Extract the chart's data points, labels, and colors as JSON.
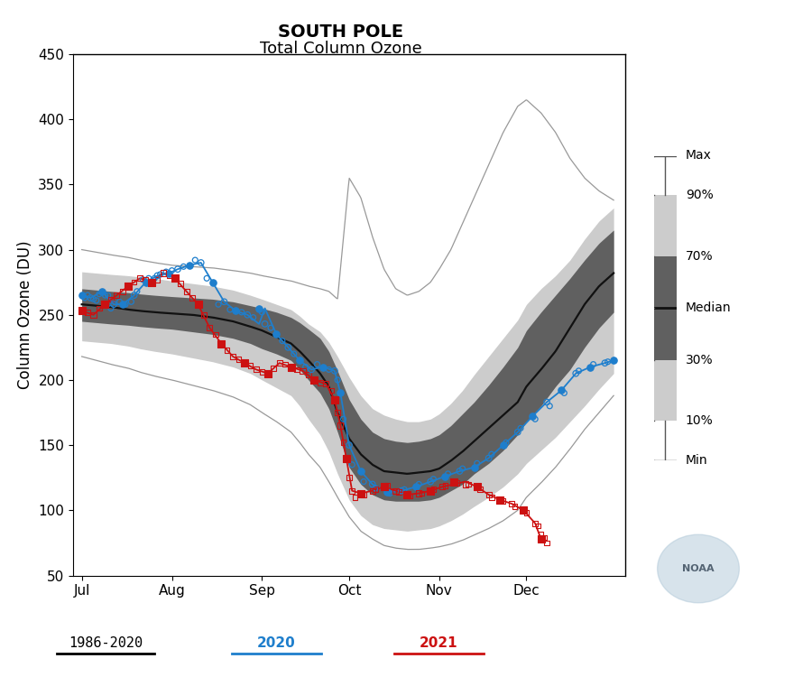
{
  "title_line1": "SOUTH POLE",
  "title_line2": "Total Column Ozone",
  "ylabel": "Column Ozone (DU)",
  "ylim": [
    50,
    450
  ],
  "yticks": [
    50,
    100,
    150,
    200,
    250,
    300,
    350,
    400,
    450
  ],
  "bg_color": "#ffffff",
  "color_light_gray": "#cccccc",
  "color_dark_gray": "#606060",
  "color_median": "#111111",
  "color_maxmin": "#999999",
  "color_2020": "#1e7ecc",
  "color_2021": "#cc1111",
  "color_legend_line": "#000000",
  "month_starts_from_jul1": [
    0,
    31,
    62,
    92,
    123,
    153
  ],
  "month_labels": [
    "Jul",
    "Aug",
    "Sep",
    "Oct",
    "Nov",
    "Dec"
  ],
  "xlim": [
    -3,
    187
  ],
  "xp": [
    0,
    5,
    10,
    16,
    20,
    25,
    31,
    38,
    45,
    52,
    58,
    62,
    67,
    72,
    75,
    78,
    82,
    85,
    88,
    92,
    96,
    100,
    104,
    108,
    112,
    116,
    120,
    123,
    127,
    131,
    135,
    140,
    145,
    150,
    153,
    158,
    163,
    168,
    173,
    178,
    183
  ],
  "med_y": [
    258,
    257,
    256,
    254,
    253,
    252,
    251,
    250,
    248,
    245,
    241,
    238,
    233,
    228,
    222,
    215,
    205,
    195,
    175,
    155,
    143,
    135,
    130,
    129,
    128,
    129,
    130,
    132,
    138,
    145,
    153,
    163,
    173,
    183,
    195,
    208,
    222,
    240,
    258,
    272,
    282
  ],
  "p70_y": [
    270,
    269,
    268,
    267,
    266,
    265,
    264,
    263,
    262,
    260,
    257,
    255,
    252,
    248,
    244,
    239,
    232,
    222,
    207,
    185,
    170,
    160,
    155,
    153,
    152,
    153,
    155,
    158,
    165,
    174,
    183,
    196,
    210,
    225,
    238,
    252,
    265,
    278,
    292,
    305,
    315
  ],
  "p30_y": [
    245,
    244,
    243,
    242,
    241,
    240,
    239,
    237,
    235,
    232,
    228,
    224,
    220,
    215,
    208,
    200,
    190,
    178,
    160,
    133,
    120,
    112,
    108,
    107,
    107,
    107,
    108,
    110,
    115,
    120,
    128,
    136,
    146,
    158,
    168,
    180,
    195,
    208,
    225,
    240,
    252
  ],
  "p90_y": [
    283,
    282,
    281,
    280,
    279,
    278,
    276,
    274,
    272,
    269,
    265,
    262,
    258,
    254,
    249,
    243,
    237,
    229,
    218,
    202,
    188,
    178,
    173,
    170,
    168,
    168,
    170,
    174,
    182,
    192,
    204,
    218,
    232,
    246,
    258,
    270,
    280,
    292,
    308,
    322,
    332
  ],
  "p10_y": [
    230,
    229,
    228,
    226,
    224,
    222,
    220,
    217,
    214,
    210,
    205,
    200,
    194,
    188,
    180,
    170,
    158,
    145,
    128,
    108,
    96,
    89,
    86,
    85,
    84,
    85,
    86,
    88,
    92,
    97,
    103,
    110,
    118,
    128,
    136,
    146,
    156,
    168,
    180,
    193,
    205
  ],
  "max_y": [
    300,
    298,
    296,
    294,
    292,
    290,
    288,
    287,
    286,
    284,
    282,
    280,
    278,
    276,
    274,
    272,
    270,
    268,
    262,
    355,
    340,
    310,
    285,
    270,
    265,
    268,
    275,
    285,
    300,
    320,
    340,
    365,
    390,
    410,
    415,
    405,
    390,
    370,
    355,
    345,
    338
  ],
  "min_y": [
    218,
    215,
    212,
    209,
    206,
    203,
    200,
    196,
    192,
    187,
    181,
    175,
    168,
    160,
    152,
    143,
    133,
    122,
    110,
    95,
    84,
    78,
    73,
    71,
    70,
    70,
    71,
    72,
    74,
    77,
    81,
    86,
    92,
    100,
    110,
    121,
    133,
    147,
    162,
    175,
    188
  ],
  "x2020_line": [
    0,
    3,
    7,
    11,
    14,
    18,
    22,
    26,
    30,
    33,
    37,
    41,
    45,
    49,
    53,
    57,
    61,
    63,
    67,
    71,
    75,
    79,
    83,
    87,
    89,
    92,
    96,
    100,
    105,
    110,
    115,
    120,
    125,
    130,
    135,
    140,
    145,
    150,
    155,
    160,
    165,
    170,
    175,
    180,
    183
  ],
  "y2020_line": [
    265,
    263,
    268,
    258,
    258,
    265,
    275,
    280,
    282,
    285,
    288,
    290,
    275,
    260,
    253,
    250,
    243,
    255,
    235,
    225,
    215,
    208,
    210,
    207,
    190,
    150,
    130,
    120,
    114,
    115,
    118,
    122,
    126,
    130,
    133,
    140,
    150,
    160,
    172,
    183,
    192,
    205,
    210,
    213,
    215
  ],
  "x2020_filled": [
    0,
    7,
    14,
    22,
    30,
    37,
    45,
    53,
    61,
    67,
    75,
    83,
    89,
    96,
    105,
    115,
    125,
    135,
    145,
    155,
    165,
    175,
    183
  ],
  "y2020_filled": [
    265,
    268,
    258,
    275,
    282,
    288,
    275,
    253,
    255,
    235,
    215,
    210,
    190,
    130,
    114,
    118,
    126,
    133,
    150,
    172,
    192,
    210,
    215
  ],
  "x2020_open": [
    3,
    11,
    18,
    26,
    33,
    41,
    49,
    57,
    63,
    71,
    79,
    87,
    92,
    100,
    110,
    120,
    130,
    140,
    150,
    160,
    170,
    180
  ],
  "y2020_open": [
    263,
    258,
    265,
    280,
    285,
    290,
    260,
    250,
    243,
    225,
    208,
    207,
    150,
    120,
    115,
    122,
    130,
    140,
    160,
    183,
    205,
    213
  ],
  "x2021_line": [
    0,
    4,
    8,
    12,
    16,
    20,
    24,
    28,
    32,
    36,
    40,
    44,
    48,
    52,
    56,
    60,
    64,
    68,
    72,
    76,
    80,
    84,
    87,
    89,
    91,
    93,
    96,
    100,
    104,
    108,
    112,
    116,
    120,
    124,
    128,
    132,
    136,
    140,
    144,
    148,
    152,
    156,
    158
  ],
  "y2021_line": [
    253,
    250,
    258,
    265,
    272,
    278,
    275,
    282,
    278,
    268,
    258,
    240,
    228,
    218,
    213,
    208,
    205,
    213,
    210,
    207,
    200,
    197,
    185,
    165,
    140,
    115,
    113,
    115,
    118,
    115,
    112,
    113,
    115,
    118,
    120,
    122,
    118,
    112,
    108,
    105,
    100,
    90,
    78
  ],
  "x2021_filled": [
    0,
    8,
    16,
    24,
    32,
    40,
    48,
    56,
    64,
    72,
    80,
    87,
    91,
    96,
    104,
    112,
    120,
    128,
    136,
    144,
    152,
    158
  ],
  "y2021_filled": [
    253,
    258,
    272,
    275,
    278,
    258,
    228,
    213,
    205,
    210,
    200,
    185,
    140,
    113,
    118,
    112,
    115,
    122,
    118,
    108,
    100,
    78
  ],
  "x2021_open": [
    4,
    12,
    20,
    28,
    36,
    44,
    52,
    60,
    68,
    76,
    84,
    89,
    93,
    100,
    108,
    116,
    124,
    132,
    140,
    148,
    156
  ],
  "y2021_open": [
    250,
    265,
    278,
    282,
    268,
    240,
    218,
    208,
    213,
    207,
    197,
    165,
    115,
    115,
    115,
    113,
    118,
    120,
    112,
    105,
    90
  ],
  "x2021_scatter_extra": [
    2,
    6,
    10,
    14,
    18,
    22,
    26,
    30,
    34,
    38,
    42,
    46,
    50,
    54,
    58,
    62,
    66,
    70,
    74,
    78,
    82,
    86,
    88,
    90,
    92,
    94,
    97,
    101,
    105,
    109,
    113,
    117,
    121,
    125,
    129,
    133,
    137,
    141,
    145,
    149,
    153,
    157,
    158,
    159,
    160
  ],
  "y2021_scatter_extra": [
    252,
    255,
    262,
    268,
    275,
    277,
    277,
    280,
    274,
    263,
    250,
    235,
    223,
    216,
    211,
    206,
    209,
    212,
    208,
    204,
    198,
    192,
    175,
    152,
    125,
    110,
    112,
    116,
    119,
    114,
    111,
    113,
    116,
    119,
    121,
    120,
    116,
    110,
    107,
    103,
    98,
    88,
    82,
    79,
    75
  ],
  "x2020_scatter_extra": [
    1,
    2,
    4,
    5,
    6,
    8,
    9,
    10,
    13,
    15,
    17,
    19,
    21,
    23,
    25,
    27,
    29,
    31,
    35,
    39,
    43,
    47,
    51,
    55,
    59,
    62,
    65,
    69,
    73,
    77,
    81,
    85,
    88,
    90,
    93,
    97,
    101,
    106,
    111,
    116,
    121,
    126,
    131,
    136,
    141,
    146,
    151,
    156,
    161,
    166,
    171,
    176,
    181
  ],
  "y2020_scatter_extra": [
    263,
    265,
    262,
    261,
    266,
    265,
    265,
    255,
    260,
    258,
    260,
    268,
    277,
    278,
    278,
    281,
    283,
    284,
    287,
    292,
    278,
    258,
    254,
    252,
    248,
    252,
    240,
    230,
    220,
    210,
    212,
    208,
    200,
    170,
    135,
    122,
    117,
    113,
    116,
    120,
    124,
    128,
    132,
    136,
    143,
    152,
    163,
    170,
    180,
    190,
    207,
    212,
    214
  ]
}
